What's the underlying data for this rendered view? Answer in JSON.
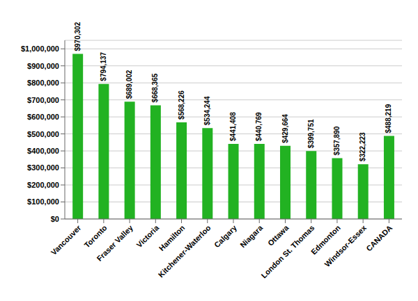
{
  "chart_data": {
    "type": "bar",
    "categories": [
      "Vancouver",
      "Toronto",
      "Fraser Valley",
      "Victoria",
      "Hamilton",
      "Kitchener-Waterloo",
      "Calgary",
      "Niagara",
      "Ottawa",
      "London St. Thomas",
      "Edmonton",
      "Windsor-Essex",
      "CANADA"
    ],
    "values": [
      970302,
      794137,
      689002,
      668365,
      568226,
      534244,
      441408,
      440769,
      429664,
      399751,
      357890,
      322223,
      488219
    ],
    "value_labels": [
      "$970,302",
      "$794,137",
      "$689,002",
      "$668,365",
      "$568,226",
      "$534,244",
      "$441,408",
      "$440,769",
      "$429,664",
      "$399,751",
      "$357,890",
      "$322,223",
      "$488,219"
    ],
    "data_labels": true,
    "color": "#22b222",
    "ylim": [
      0,
      1050000
    ],
    "yticks": [
      {
        "value": 0,
        "label": "$0"
      },
      {
        "value": 100000,
        "label": "$100,000"
      },
      {
        "value": 200000,
        "label": "$200,000"
      },
      {
        "value": 300000,
        "label": "$300,000"
      },
      {
        "value": 400000,
        "label": "$400,000"
      },
      {
        "value": 500000,
        "label": "$500,000"
      },
      {
        "value": 600000,
        "label": "$600,000"
      },
      {
        "value": 700000,
        "label": "$700,000"
      },
      {
        "value": 800000,
        "label": "$800,000"
      },
      {
        "value": 900000,
        "label": "$900,000"
      },
      {
        "value": 1000000,
        "label": "$1,000,000"
      }
    ],
    "grid": true
  }
}
